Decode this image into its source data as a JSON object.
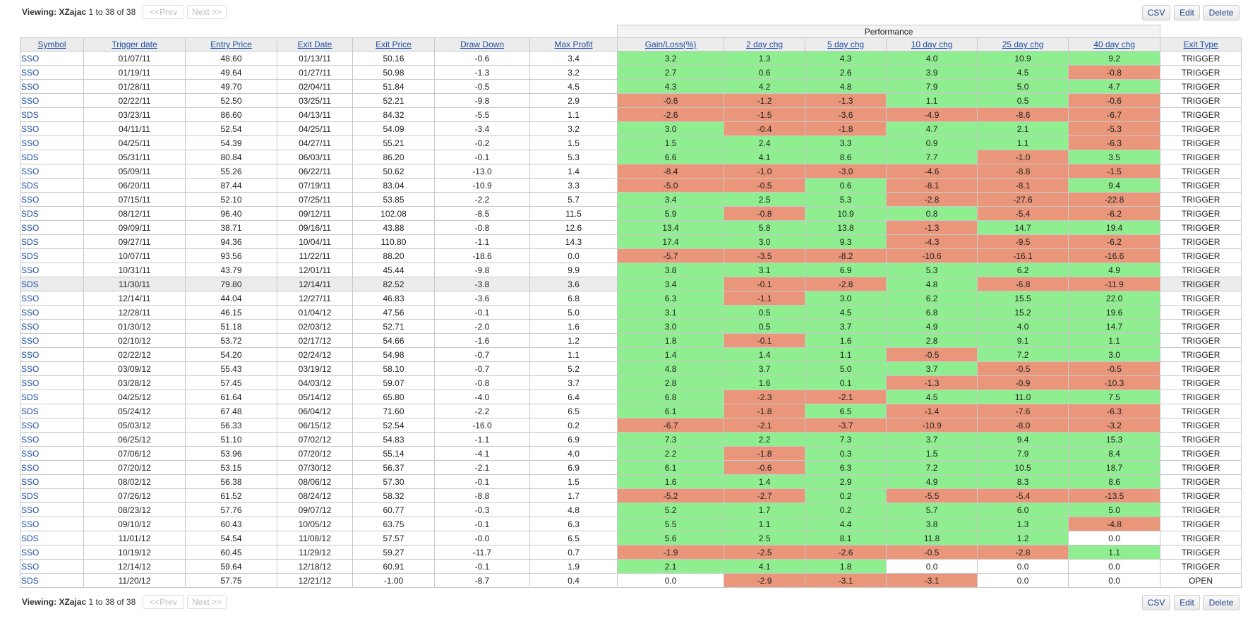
{
  "pager": {
    "viewing_label": "Viewing:",
    "user": "XZajac",
    "range": "1 to 38 of 38",
    "prev": "<<Prev",
    "next": "Next >>"
  },
  "actions": {
    "csv": "CSV",
    "edit": "Edit",
    "delete": "Delete"
  },
  "table": {
    "group_header": "Performance",
    "columns": [
      "Symbol",
      "Trigger date",
      "Entry Price",
      "Exit Date",
      "Exit Price",
      "Draw Down",
      "Max Profit",
      "Gain/Loss(%)",
      "2 day chg",
      "5 day chg",
      "10 day chg",
      "25 day chg",
      "40 day chg",
      "Exit Type"
    ],
    "highlighted_row": 16,
    "rows": [
      [
        "SSO",
        "01/07/11",
        "48.60",
        "01/13/11",
        "50.16",
        "-0.6",
        "3.4",
        "3.2",
        "1.3",
        "4.3",
        "4.0",
        "10.9",
        "9.2",
        "TRIGGER"
      ],
      [
        "SSO",
        "01/19/11",
        "49.64",
        "01/27/11",
        "50.98",
        "-1.3",
        "3.2",
        "2.7",
        "0.6",
        "2.6",
        "3.9",
        "4.5",
        "-0.8",
        "TRIGGER"
      ],
      [
        "SSO",
        "01/28/11",
        "49.70",
        "02/04/11",
        "51.84",
        "-0.5",
        "4.5",
        "4.3",
        "4.2",
        "4.8",
        "7.9",
        "5.0",
        "4.7",
        "TRIGGER"
      ],
      [
        "SSO",
        "02/22/11",
        "52.50",
        "03/25/11",
        "52.21",
        "-9.8",
        "2.9",
        "-0.6",
        "-1.2",
        "-1.3",
        "1.1",
        "0.5",
        "-0.6",
        "TRIGGER"
      ],
      [
        "SDS",
        "03/23/11",
        "86.60",
        "04/13/11",
        "84.32",
        "-5.5",
        "1.1",
        "-2.6",
        "-1.5",
        "-3.6",
        "-4.9",
        "-8.6",
        "-6.7",
        "TRIGGER"
      ],
      [
        "SSO",
        "04/11/11",
        "52.54",
        "04/25/11",
        "54.09",
        "-3.4",
        "3.2",
        "3.0",
        "-0.4",
        "-1.8",
        "4.7",
        "2.1",
        "-5.3",
        "TRIGGER"
      ],
      [
        "SSO",
        "04/25/11",
        "54.39",
        "04/27/11",
        "55.21",
        "-0.2",
        "1.5",
        "1.5",
        "2.4",
        "3.3",
        "0.9",
        "1.1",
        "-6.3",
        "TRIGGER"
      ],
      [
        "SDS",
        "05/31/11",
        "80.84",
        "06/03/11",
        "86.20",
        "-0.1",
        "5.3",
        "6.6",
        "4.1",
        "8.6",
        "7.7",
        "-1.0",
        "3.5",
        "TRIGGER"
      ],
      [
        "SSO",
        "05/09/11",
        "55.26",
        "06/22/11",
        "50.62",
        "-13.0",
        "1.4",
        "-8.4",
        "-1.0",
        "-3.0",
        "-4.6",
        "-8.8",
        "-1.5",
        "TRIGGER"
      ],
      [
        "SDS",
        "06/20/11",
        "87.44",
        "07/19/11",
        "83.04",
        "-10.9",
        "3.3",
        "-5.0",
        "-0.5",
        "0.6",
        "-8.1",
        "-8.1",
        "9.4",
        "TRIGGER"
      ],
      [
        "SSO",
        "07/15/11",
        "52.10",
        "07/25/11",
        "53.85",
        "-2.2",
        "5.7",
        "3.4",
        "2.5",
        "5.3",
        "-2.8",
        "-27.6",
        "-22.8",
        "TRIGGER"
      ],
      [
        "SDS",
        "08/12/11",
        "96.40",
        "09/12/11",
        "102.08",
        "-8.5",
        "11.5",
        "5.9",
        "-0.8",
        "10.9",
        "0.8",
        "-5.4",
        "-6.2",
        "TRIGGER"
      ],
      [
        "SSO",
        "09/09/11",
        "38.71",
        "09/16/11",
        "43.88",
        "-0.8",
        "12.6",
        "13.4",
        "5.8",
        "13.8",
        "-1.3",
        "14.7",
        "19.4",
        "TRIGGER"
      ],
      [
        "SDS",
        "09/27/11",
        "94.36",
        "10/04/11",
        "110.80",
        "-1.1",
        "14.3",
        "17.4",
        "3.0",
        "9.3",
        "-4.3",
        "-9.5",
        "-6.2",
        "TRIGGER"
      ],
      [
        "SDS",
        "10/07/11",
        "93.56",
        "11/22/11",
        "88.20",
        "-18.6",
        "0.0",
        "-5.7",
        "-3.5",
        "-8.2",
        "-10.6",
        "-16.1",
        "-16.6",
        "TRIGGER"
      ],
      [
        "SSO",
        "10/31/11",
        "43.79",
        "12/01/11",
        "45.44",
        "-9.8",
        "9.9",
        "3.8",
        "3.1",
        "6.9",
        "5.3",
        "6.2",
        "4.9",
        "TRIGGER"
      ],
      [
        "SDS",
        "11/30/11",
        "79.80",
        "12/14/11",
        "82.52",
        "-3.8",
        "3.6",
        "3.4",
        "-0.1",
        "-2.8",
        "4.8",
        "-6.8",
        "-11.9",
        "TRIGGER"
      ],
      [
        "SSO",
        "12/14/11",
        "44.04",
        "12/27/11",
        "46.83",
        "-3.6",
        "6.8",
        "6.3",
        "-1.1",
        "3.0",
        "6.2",
        "15.5",
        "22.0",
        "TRIGGER"
      ],
      [
        "SSO",
        "12/28/11",
        "46.15",
        "01/04/12",
        "47.56",
        "-0.1",
        "5.0",
        "3.1",
        "0.5",
        "4.5",
        "6.8",
        "15.2",
        "19.6",
        "TRIGGER"
      ],
      [
        "SSO",
        "01/30/12",
        "51.18",
        "02/03/12",
        "52.71",
        "-2.0",
        "1.6",
        "3.0",
        "0.5",
        "3.7",
        "4.9",
        "4.0",
        "14.7",
        "TRIGGER"
      ],
      [
        "SSO",
        "02/10/12",
        "53.72",
        "02/17/12",
        "54.66",
        "-1.6",
        "1.2",
        "1.8",
        "-0.1",
        "1.6",
        "2.8",
        "9.1",
        "1.1",
        "TRIGGER"
      ],
      [
        "SSO",
        "02/22/12",
        "54.20",
        "02/24/12",
        "54.98",
        "-0.7",
        "1.1",
        "1.4",
        "1.4",
        "1.1",
        "-0.5",
        "7.2",
        "3.0",
        "TRIGGER"
      ],
      [
        "SSO",
        "03/09/12",
        "55.43",
        "03/19/12",
        "58.10",
        "-0.7",
        "5.2",
        "4.8",
        "3.7",
        "5.0",
        "3.7",
        "-0.5",
        "-0.5",
        "TRIGGER"
      ],
      [
        "SSO",
        "03/28/12",
        "57.45",
        "04/03/12",
        "59.07",
        "-0.8",
        "3.7",
        "2.8",
        "1.6",
        "0.1",
        "-1.3",
        "-0.9",
        "-10.3",
        "TRIGGER"
      ],
      [
        "SDS",
        "04/25/12",
        "61.64",
        "05/14/12",
        "65.80",
        "-4.0",
        "6.4",
        "6.8",
        "-2.3",
        "-2.1",
        "4.5",
        "11.0",
        "7.5",
        "TRIGGER"
      ],
      [
        "SDS",
        "05/24/12",
        "67.48",
        "06/04/12",
        "71.60",
        "-2.2",
        "6.5",
        "6.1",
        "-1.8",
        "6.5",
        "-1.4",
        "-7.6",
        "-6.3",
        "TRIGGER"
      ],
      [
        "SSO",
        "05/03/12",
        "56.33",
        "06/15/12",
        "52.54",
        "-16.0",
        "0.2",
        "-6.7",
        "-2.1",
        "-3.7",
        "-10.9",
        "-8.0",
        "-3.2",
        "TRIGGER"
      ],
      [
        "SSO",
        "06/25/12",
        "51.10",
        "07/02/12",
        "54.83",
        "-1.1",
        "6.9",
        "7.3",
        "2.2",
        "7.3",
        "3.7",
        "9.4",
        "15.3",
        "TRIGGER"
      ],
      [
        "SSO",
        "07/06/12",
        "53.96",
        "07/20/12",
        "55.14",
        "-4.1",
        "4.0",
        "2.2",
        "-1.8",
        "0.3",
        "1.5",
        "7.9",
        "8.4",
        "TRIGGER"
      ],
      [
        "SSO",
        "07/20/12",
        "53.15",
        "07/30/12",
        "56.37",
        "-2.1",
        "6.9",
        "6.1",
        "-0.6",
        "6.3",
        "7.2",
        "10.5",
        "18.7",
        "TRIGGER"
      ],
      [
        "SSO",
        "08/02/12",
        "56.38",
        "08/06/12",
        "57.30",
        "-0.1",
        "1.5",
        "1.6",
        "1.4",
        "2.9",
        "4.9",
        "8.3",
        "8.6",
        "TRIGGER"
      ],
      [
        "SDS",
        "07/26/12",
        "61.52",
        "08/24/12",
        "58.32",
        "-8.8",
        "1.7",
        "-5.2",
        "-2.7",
        "0.2",
        "-5.5",
        "-5.4",
        "-13.5",
        "TRIGGER"
      ],
      [
        "SSO",
        "08/23/12",
        "57.76",
        "09/07/12",
        "60.77",
        "-0.3",
        "4.8",
        "5.2",
        "1.7",
        "0.2",
        "5.7",
        "6.0",
        "5.0",
        "TRIGGER"
      ],
      [
        "SSO",
        "09/10/12",
        "60.43",
        "10/05/12",
        "63.75",
        "-0.1",
        "6.3",
        "5.5",
        "1.1",
        "4.4",
        "3.8",
        "1.3",
        "-4.8",
        "TRIGGER"
      ],
      [
        "SDS",
        "11/01/12",
        "54.54",
        "11/08/12",
        "57.57",
        "-0.0",
        "6.5",
        "5.6",
        "2.5",
        "8.1",
        "11.8",
        "1.2",
        "0.0",
        "TRIGGER"
      ],
      [
        "SSO",
        "10/19/12",
        "60.45",
        "11/29/12",
        "59.27",
        "-11.7",
        "0.7",
        "-1.9",
        "-2.5",
        "-2.6",
        "-0.5",
        "-2.8",
        "1.1",
        "TRIGGER"
      ],
      [
        "SSO",
        "12/14/12",
        "59.64",
        "12/18/12",
        "60.91",
        "-0.1",
        "1.9",
        "2.1",
        "4.1",
        "1.8",
        "0.0",
        "0.0",
        "0.0",
        "TRIGGER"
      ],
      [
        "SDS",
        "11/20/12",
        "57.75",
        "12/21/12",
        "-1.00",
        "-8.7",
        "0.4",
        "0.0",
        "-2.9",
        "-3.1",
        "-3.1",
        "0.0",
        "0.0",
        "OPEN"
      ]
    ]
  }
}
